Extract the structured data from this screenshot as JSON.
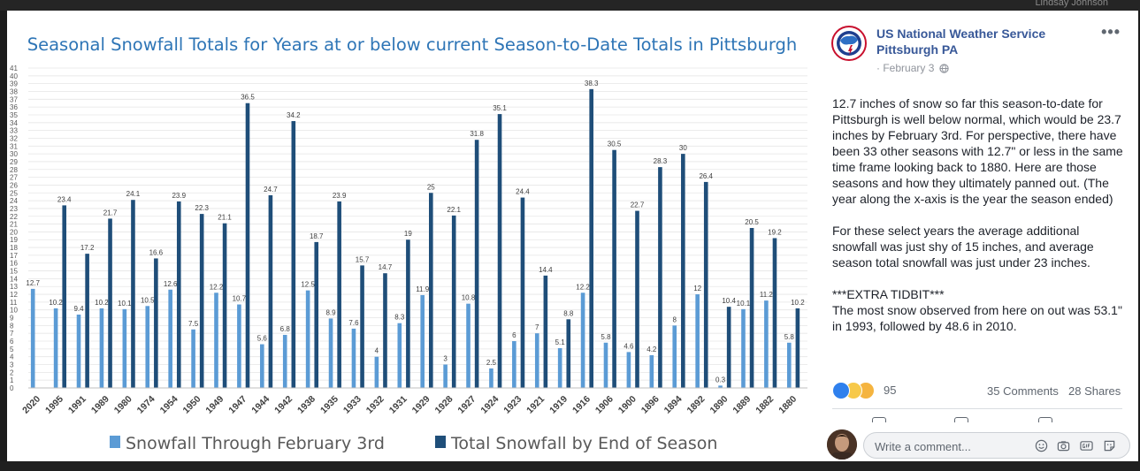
{
  "background": {
    "top_right_name": "Lindsay Johnson"
  },
  "post": {
    "page_name": "US National Weather Service Pittsburgh PA",
    "date": "February 3",
    "date_prefix": "·",
    "body": [
      "12.7 inches of snow so far this season-to-date for Pittsburgh is well below normal, which would be 23.7 inches by February 3rd. For perspective, there have been 33 other seasons with 12.7\" or less in the same time frame looking back to 1880. Here are those seasons and how they ultimately panned out. (The year along the x-axis is the year the season ended)",
      "For these select years the average additional snowfall was just shy of 15 inches, and average season total snowfall was just under 23 inches.",
      "***EXTRA TIDBIT***\nThe most snow observed from here on out was 53.1\" in 1993, followed by 48.6 in 2010."
    ],
    "reaction_count": "95",
    "comments": "35 Comments",
    "shares": "28 Shares",
    "comment_placeholder": "Write a comment...",
    "icons": [
      "nws-logo",
      "globe-icon",
      "more-icon",
      "like-reaction-icon",
      "wow-reaction-icon",
      "sad-reaction-icon",
      "emoji-icon",
      "camera-icon",
      "gif-icon",
      "sticker-icon"
    ],
    "colors": {
      "link": "#385898",
      "meta": "#90949c",
      "text": "#1d2129"
    }
  },
  "chart_data": {
    "type": "bar",
    "title": "Seasonal Snowfall Totals for Years at or below current Season-to-Date Totals in Pittsburgh",
    "categories": [
      "2020",
      "1995",
      "1991",
      "1989",
      "1980",
      "1974",
      "1954",
      "1950",
      "1949",
      "1947",
      "1944",
      "1942",
      "1938",
      "1935",
      "1933",
      "1932",
      "1931",
      "1929",
      "1928",
      "1927",
      "1924",
      "1923",
      "1921",
      "1919",
      "1916",
      "1906",
      "1900",
      "1896",
      "1894",
      "1892",
      "1890",
      "1889",
      "1882",
      "1880"
    ],
    "series": [
      {
        "name": "Snowfall Through February 3rd",
        "color": "#5b9bd5",
        "values": [
          12.7,
          10.2,
          9.4,
          10.2,
          10.1,
          10.5,
          12.6,
          7.5,
          12.2,
          10.7,
          5.6,
          6.8,
          12.5,
          8.9,
          7.6,
          4,
          8.3,
          11.9,
          3,
          10.8,
          2.5,
          6,
          7,
          5.1,
          12.2,
          5.8,
          4.6,
          4.2,
          8,
          12,
          0.3,
          10.1,
          11.2,
          5.8
        ]
      },
      {
        "name": "Total Snowfall by End of Season",
        "color": "#1f4e79",
        "values": [
          null,
          23.4,
          17.2,
          21.7,
          24.1,
          16.6,
          23.9,
          22.3,
          21.1,
          36.5,
          24.7,
          34.2,
          18.7,
          23.9,
          15.7,
          14.7,
          19,
          25,
          22.1,
          31.8,
          35.1,
          24.4,
          14.4,
          8.8,
          38.3,
          30.5,
          22.7,
          28.3,
          30,
          26.4,
          10.4,
          20.5,
          19.2,
          10.2
        ]
      }
    ],
    "ylim": [
      0,
      41
    ],
    "grid": true,
    "legend": "bottom",
    "title_color": "#2e75b6"
  }
}
